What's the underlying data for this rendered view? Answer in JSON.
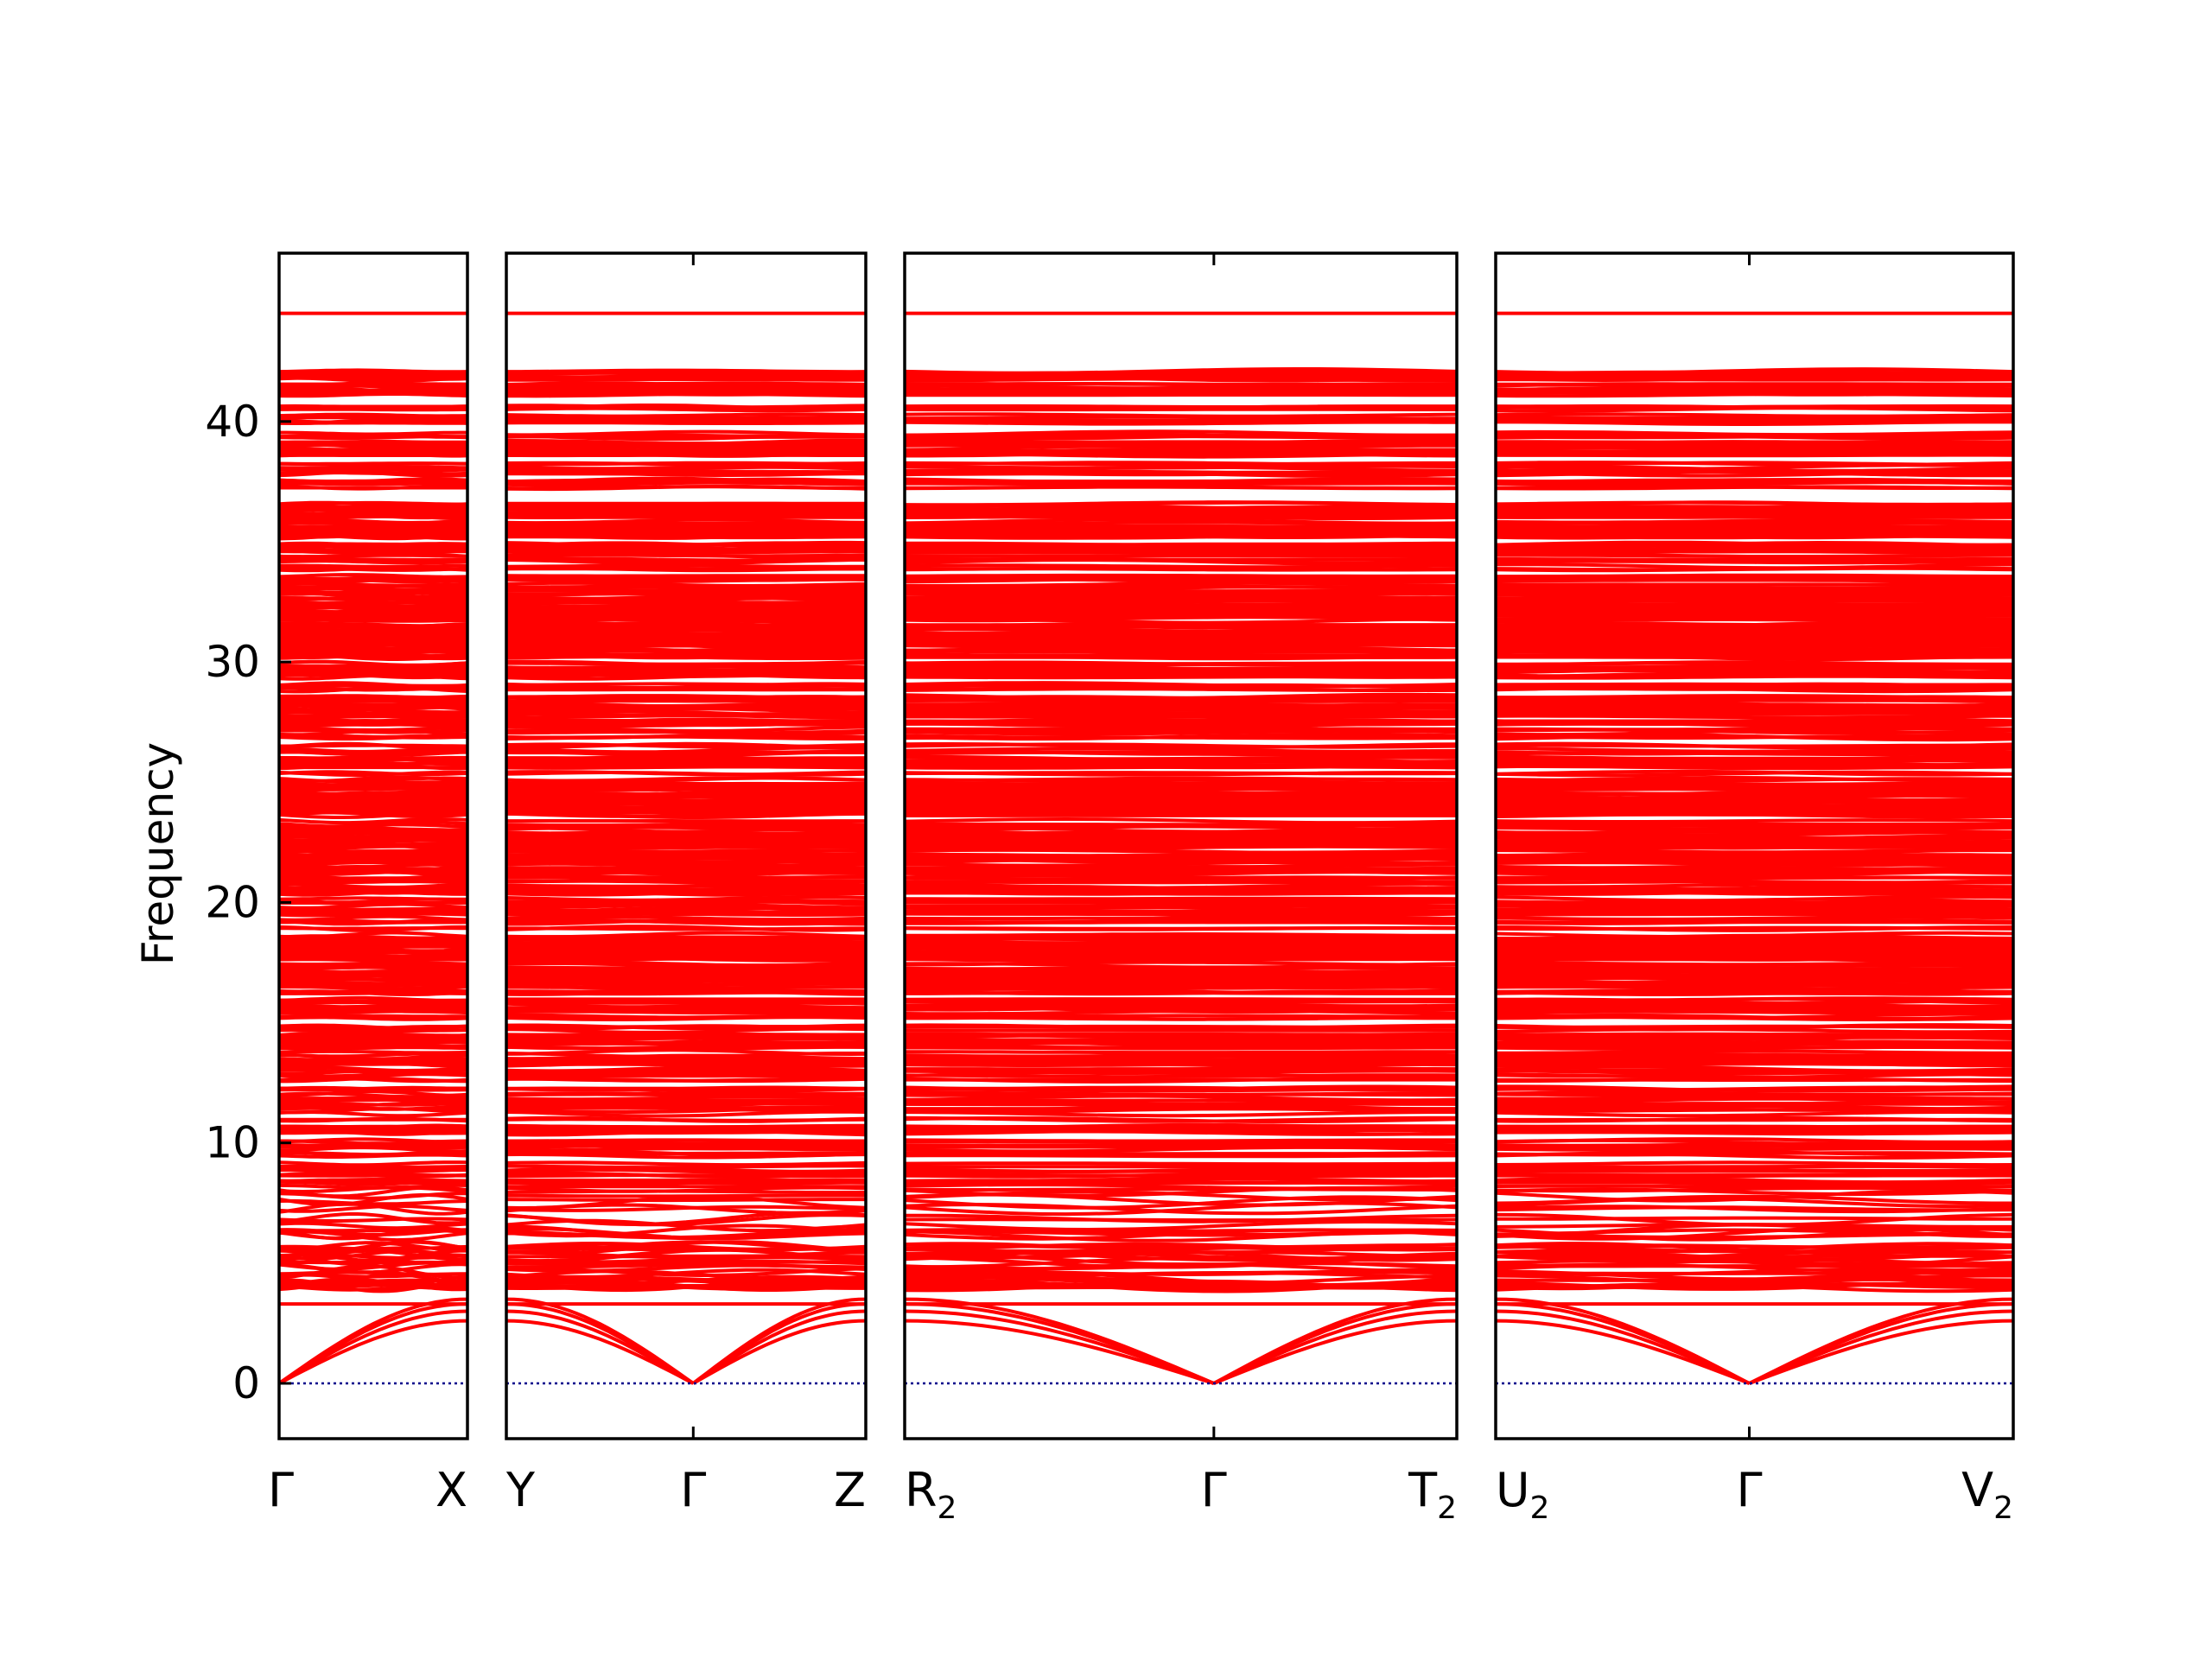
{
  "chart_data": {
    "type": "line",
    "title": "",
    "ylabel": "Frequency",
    "ylim": [
      -2.3,
      47
    ],
    "yticks": [
      0,
      10,
      20,
      30,
      40
    ],
    "colors": {
      "bands": "#ff0000",
      "zero_line": "#00008b",
      "frame": "#000000"
    },
    "band_summary": {
      "dense_region": [
        0,
        42.1
      ],
      "flat_top_band": 44.5,
      "acoustic_branches_start": 0,
      "low_optic_band": 3.3
    },
    "panels": [
      {
        "start_label": "Γ",
        "start_sub": "",
        "end_label": "X",
        "end_sub": "",
        "mid_label": "",
        "mid_sub": ""
      },
      {
        "start_label": "Y",
        "start_sub": "",
        "mid_label": "Γ",
        "mid_sub": "",
        "end_label": "Z",
        "end_sub": ""
      },
      {
        "start_label": "R",
        "start_sub": "2",
        "mid_label": "Γ",
        "mid_sub": "",
        "end_label": "T",
        "end_sub": "2"
      },
      {
        "start_label": "U",
        "start_sub": "2",
        "mid_label": "Γ",
        "mid_sub": "",
        "end_label": "V",
        "end_sub": "2"
      }
    ]
  }
}
